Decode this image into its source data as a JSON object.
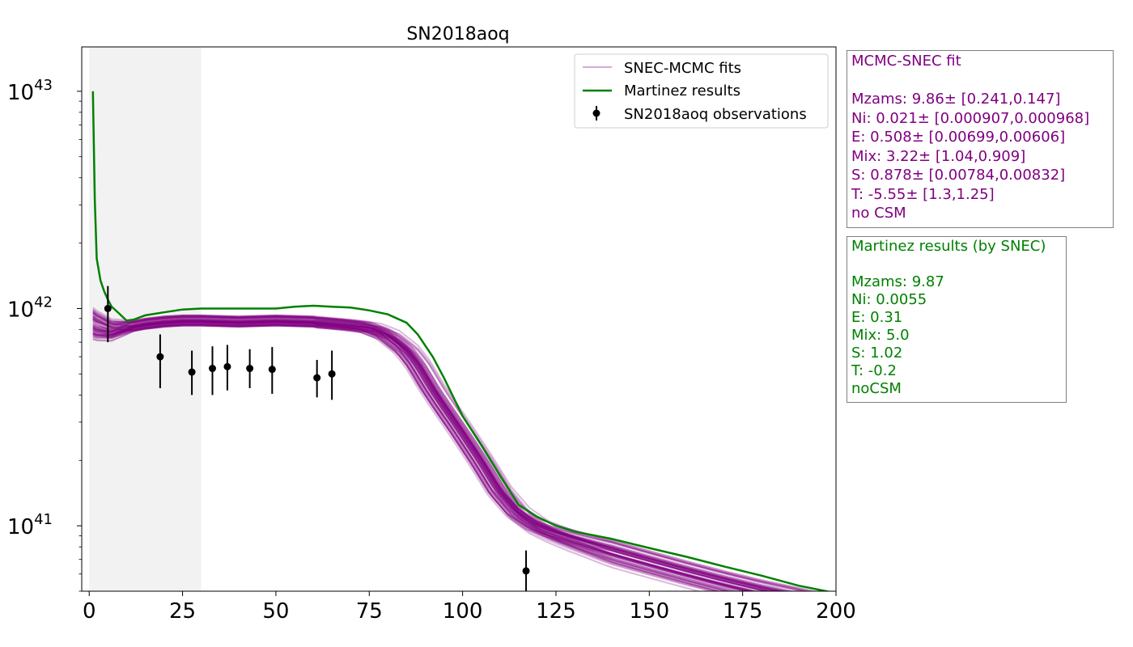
{
  "chart_data": {
    "type": "line",
    "title": "SN2018aoq",
    "xlabel": "",
    "ylabel": "",
    "xlim": [
      -2,
      200
    ],
    "ylim": [
      5e+40,
      1.6e+43
    ],
    "yscale": "log",
    "x_ticks": [
      0,
      25,
      50,
      75,
      100,
      125,
      150,
      175,
      200
    ],
    "y_ticks": [
      {
        "value": 1e+41,
        "base": "10",
        "exp": "41"
      },
      {
        "value": 1e+42,
        "base": "10",
        "exp": "42"
      },
      {
        "value": 1e+43,
        "base": "10",
        "exp": "43"
      }
    ],
    "shaded_region": {
      "x": [
        0,
        30
      ],
      "color": "#f2f2f2"
    },
    "legend": {
      "location": "top-right",
      "entries": [
        "SNEC-MCMC fits",
        "Martinez results",
        "SN2018aoq observations"
      ]
    },
    "colors": {
      "mcmc": "#800080",
      "martinez": "#008000",
      "obs": "#000000"
    },
    "martinez_results": {
      "name": "Martinez results",
      "x": [
        1,
        1.5,
        2,
        3,
        4,
        5,
        6,
        8,
        10,
        12,
        15,
        20,
        25,
        30,
        40,
        50,
        55,
        60,
        65,
        70,
        75,
        80,
        85,
        88,
        92,
        95,
        100,
        105,
        110,
        115,
        120,
        125,
        130,
        140,
        150,
        160,
        170,
        180,
        190,
        200
      ],
      "y": [
        1e+43,
        3.2e+42,
        1.7e+42,
        1.35e+42,
        1.2e+42,
        1.1e+42,
        1.02e+42,
        9.5e+41,
        8.8e+41,
        8.9e+41,
        9.3e+41,
        9.6e+41,
        9.9e+41,
        1e+42,
        1e+42,
        1e+42,
        1.02e+42,
        1.03e+42,
        1.02e+42,
        1.01e+42,
        9.8e+41,
        9.4e+41,
        8.6e+41,
        7.6e+41,
        6e+41,
        4.8e+41,
        3.2e+41,
        2.35e+41,
        1.7e+41,
        1.25e+41,
        1.1e+41,
        1e+41,
        9.4e+40,
        8.7e+40,
        7.9e+40,
        7.2e+40,
        6.5e+40,
        5.9e+40,
        5.3e+40,
        4.9e+40
      ]
    },
    "mcmc_template": {
      "name": "SNEC-MCMC fits",
      "x": [
        1,
        2,
        4,
        6,
        8,
        10,
        15,
        20,
        25,
        30,
        40,
        50,
        60,
        70,
        75,
        80,
        85,
        88,
        92,
        95,
        100,
        105,
        110,
        115,
        120,
        125,
        130,
        140,
        150,
        160,
        170,
        180,
        190,
        195
      ],
      "y": [
        8.6e+41,
        8.4e+41,
        8.2e+41,
        8e+41,
        8.1e+41,
        8.2e+41,
        8.5e+41,
        8.7e+41,
        8.8e+41,
        8.8e+41,
        8.7e+41,
        8.8e+41,
        8.7e+41,
        8.4e+41,
        8.2e+41,
        7.6e+41,
        6.5e+41,
        5.6e+41,
        4.3e+41,
        3.6e+41,
        2.7e+41,
        2e+41,
        1.45e+41,
        1.15e+41,
        1e+41,
        9.2e+40,
        8.6e+40,
        7.6e+40,
        6.8e+40,
        6.1e+40,
        5.5e+40,
        5e+40,
        4.6e+40,
        4.4e+40
      ]
    },
    "mcmc_fit_count": 60,
    "observations": {
      "name": "SN2018aoq observations",
      "x": [
        5,
        19,
        27.5,
        33,
        37,
        43,
        49,
        61,
        65,
        117
      ],
      "y": [
        1e+42,
        6e+41,
        5.1e+41,
        5.3e+41,
        5.4e+41,
        5.3e+41,
        5.25e+41,
        4.8e+41,
        5e+41,
        6.2e+40
      ],
      "yerr_low": [
        3e+41,
        1.7e+41,
        1.1e+41,
        1.3e+41,
        1.2e+41,
        1e+41,
        1.2e+41,
        9e+40,
        1.2e+41,
        1.2e+40
      ],
      "yerr_high": [
        2.7e+41,
        1.6e+41,
        1.3e+41,
        1.4e+41,
        1.4e+41,
        1.2e+41,
        1.4e+41,
        1e+41,
        1.4e+41,
        1.5e+40
      ]
    }
  },
  "mcmc_box": {
    "title": "MCMC-SNEC fit",
    "lines": [
      "Mzams: 9.86± [0.241,0.147]",
      "Ni: 0.021± [0.000907,0.000968]",
      "E: 0.508± [0.00699,0.00606]",
      "Mix: 3.22± [1.04,0.909]",
      "S: 0.878± [0.00784,0.00832]",
      "T: -5.55± [1.3,1.25]",
      "no CSM"
    ]
  },
  "martinez_box": {
    "title": "Martinez results (by SNEC)",
    "lines": [
      "Mzams: 9.87",
      "Ni: 0.0055",
      "E: 0.31",
      "Mix: 5.0",
      "S: 1.02",
      "T: -0.2",
      "noCSM"
    ]
  }
}
